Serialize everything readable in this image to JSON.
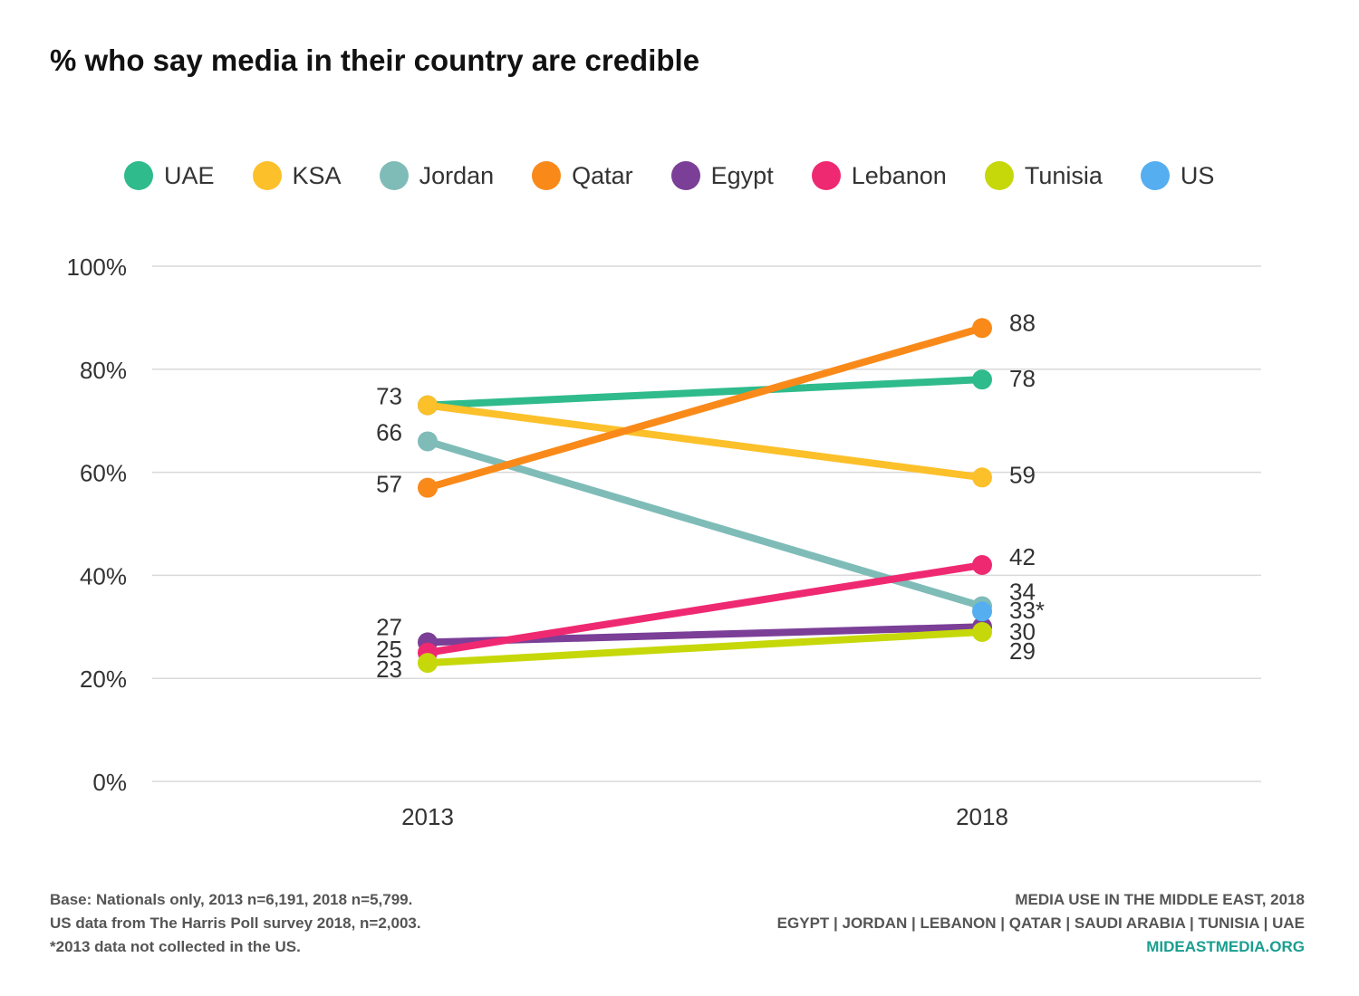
{
  "chart_data": {
    "type": "line",
    "title": "% who say media in their country are credible",
    "x": [
      "2013",
      "2018"
    ],
    "ylim": [
      0,
      100
    ],
    "yticks": [
      "0%",
      "20%",
      "40%",
      "60%",
      "80%",
      "100%"
    ],
    "ytick_values": [
      0,
      20,
      40,
      60,
      80,
      100
    ],
    "grid": true,
    "legend_position": "top",
    "series": [
      {
        "name": "UAE",
        "color": "#2fbb8b",
        "values": [
          73,
          78
        ],
        "labels": [
          null,
          "78"
        ]
      },
      {
        "name": "KSA",
        "color": "#fcc02a",
        "values": [
          73,
          59
        ],
        "labels": [
          "73",
          "59"
        ]
      },
      {
        "name": "Jordan",
        "color": "#7fbcb8",
        "values": [
          66,
          34
        ],
        "labels": [
          "66",
          "34"
        ]
      },
      {
        "name": "Qatar",
        "color": "#f98a1a",
        "values": [
          57,
          88
        ],
        "labels": [
          "57",
          "88"
        ]
      },
      {
        "name": "Egypt",
        "color": "#7b3f97",
        "values": [
          27,
          30
        ],
        "labels": [
          "27",
          "30"
        ]
      },
      {
        "name": "Lebanon",
        "color": "#ef2971",
        "values": [
          25,
          42
        ],
        "labels": [
          "25",
          "42"
        ]
      },
      {
        "name": "Tunisia",
        "color": "#c6d80a",
        "values": [
          23,
          29
        ],
        "labels": [
          "23",
          "29"
        ]
      },
      {
        "name": "US",
        "color": "#55aef0",
        "values": [
          null,
          33
        ],
        "labels": [
          null,
          "33*"
        ]
      }
    ]
  },
  "footer": {
    "base_note": "Base: Nationals only, 2013 n=6,191, 2018 n=5,799.",
    "us_note": "US data from The Harris Poll survey 2018, n=2,003.",
    "asterisk_note": "*2013 data not collected in the US.",
    "report_title": "MEDIA USE IN THE MIDDLE EAST, 2018",
    "countries": "EGYPT | JORDAN | LEBANON | QATAR | SAUDI ARABIA | TUNISIA | UAE",
    "website": "MIDEASTMEDIA.ORG"
  }
}
